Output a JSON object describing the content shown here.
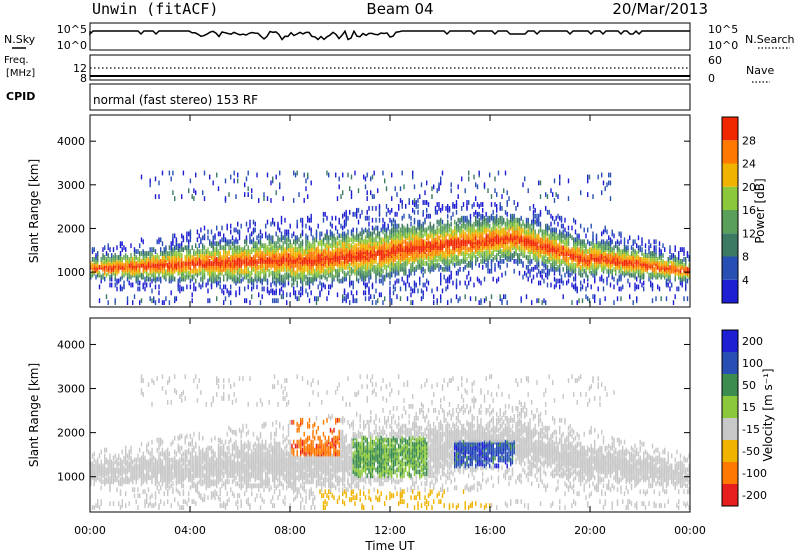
{
  "header": {
    "station": "Unwin (fitACF)",
    "beam": "Beam 04",
    "date": "20/Mar/2013"
  },
  "top_panels": {
    "nsky_label": "N.Sky",
    "nsky_ticks": [
      "10^5",
      "10^0"
    ],
    "nsearch_label": "N.Search",
    "nsearch_ticks": [
      "10^5",
      "10^0"
    ],
    "freq_label_1": "Freq.",
    "freq_label_2": "[MHz]",
    "freq_ticks": [
      "12",
      "8"
    ],
    "nave_label": "Nave",
    "nave_ticks": [
      "60",
      "0"
    ],
    "cpid_label": "CPID",
    "cpid_text": "normal (fast stereo) 153 RF"
  },
  "colors": {
    "power": [
      "#1e1ed2",
      "#2850b4",
      "#3c7a64",
      "#5aa05a",
      "#8cc83c",
      "#f0b400",
      "#ff7800",
      "#f02800"
    ],
    "velocity": [
      "#e61e1e",
      "#ff7800",
      "#f0b400",
      "#c8c8c8",
      "#8cc83c",
      "#3c8c50",
      "#2850b4",
      "#1e1ed2"
    ]
  },
  "chart_data": [
    {
      "type": "heatmap",
      "name": "power-panel",
      "ylabel": "Slant Range [km]",
      "ylim": [
        200,
        4600
      ],
      "yticks": [
        "1000",
        "2000",
        "3000",
        "4000"
      ],
      "xlim": [
        0,
        24
      ],
      "colorbar_label": "Power [dB]",
      "colorbar_ticks": [
        "4",
        "8",
        "12",
        "16",
        "20",
        "24",
        "28"
      ],
      "scale": [
        0,
        32
      ]
    },
    {
      "type": "heatmap",
      "name": "velocity-panel",
      "ylabel": "Slant Range [km]",
      "ylim": [
        200,
        4600
      ],
      "yticks": [
        "1000",
        "2000",
        "3000",
        "4000"
      ],
      "xlim": [
        0,
        24
      ],
      "xticks": [
        "00:00",
        "04:00",
        "08:00",
        "12:00",
        "16:00",
        "20:00",
        "00:00"
      ],
      "xlabel": "Time UT",
      "colorbar_label": "Velocity [m s⁻¹]",
      "colorbar_ticks": [
        "200",
        "100",
        "50",
        "15",
        "-15",
        "-50",
        "-100",
        "-200"
      ]
    }
  ]
}
